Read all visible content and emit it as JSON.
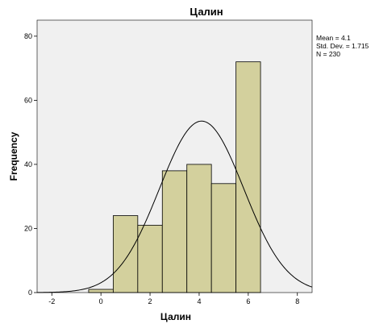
{
  "chart_data": {
    "type": "bar",
    "title": "Цалин",
    "xlabel": "Цалин",
    "ylabel": "Frequency",
    "bin_width": 1,
    "bins": [
      {
        "center": 0,
        "count": 1
      },
      {
        "center": 1,
        "count": 24
      },
      {
        "center": 2,
        "count": 21
      },
      {
        "center": 3,
        "count": 38
      },
      {
        "center": 4,
        "count": 40
      },
      {
        "center": 5,
        "count": 34
      },
      {
        "center": 6,
        "count": 72
      }
    ],
    "xlim": [
      -2.6,
      8.6
    ],
    "ylim": [
      0,
      85
    ],
    "x_ticks": [
      "-2",
      "0",
      "2",
      "4",
      "6",
      "8"
    ],
    "y_ticks": [
      "0",
      "20",
      "40",
      "60",
      "80"
    ],
    "normal_curve": {
      "mean": 4.1,
      "std_dev": 1.715,
      "n": 230
    },
    "stats": {
      "mean": "Mean = 4.1",
      "std_dev": "Std. Dev. = 1.715",
      "n": "N = 230"
    },
    "grid": false,
    "colors": {
      "plot_background": "#f0f0f0",
      "bar_fill": "#d3d09d",
      "bar_stroke": "#000000",
      "curve": "#000000"
    }
  }
}
